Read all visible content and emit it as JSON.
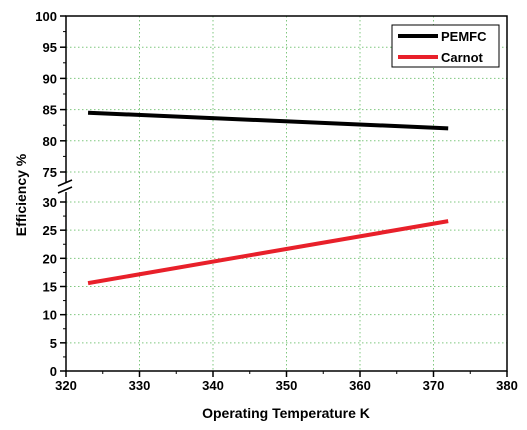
{
  "chart_data": {
    "type": "line",
    "xlabel": "Operating Temperature  K",
    "ylabel": "Efficiency %",
    "xlim": [
      320,
      380
    ],
    "x_ticks": [
      320,
      330,
      340,
      350,
      360,
      370,
      380
    ],
    "y_axis_break": true,
    "y_upper_ticks": [
      75,
      80,
      85,
      90,
      95,
      100
    ],
    "y_lower_ticks": [
      0,
      5,
      10,
      15,
      20,
      25,
      30
    ],
    "grid": true,
    "legend_position": "top-right",
    "series": [
      {
        "name": "PEMFC",
        "color": "#000000",
        "x": [
          323,
          372
        ],
        "y": [
          84.5,
          82.0
        ]
      },
      {
        "name": "Carnot",
        "color": "#e8202a",
        "x": [
          323,
          372
        ],
        "y": [
          15.6,
          26.6
        ]
      }
    ]
  }
}
